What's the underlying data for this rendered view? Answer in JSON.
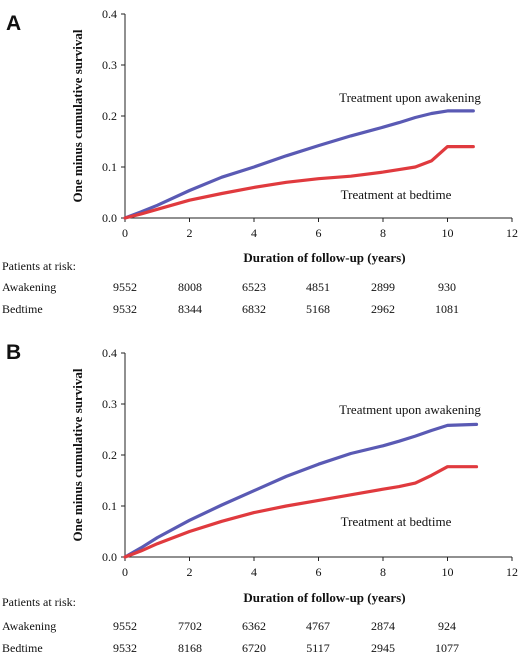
{
  "chart_data": [
    {
      "type": "line",
      "panel_label": "A",
      "xlabel": "Duration of follow-up (years)",
      "ylabel": "One minus cumulative survival",
      "xlim": [
        0,
        12
      ],
      "ylim": [
        0,
        0.4
      ],
      "xticks": [
        "0",
        "2",
        "4",
        "6",
        "8",
        "10",
        "12"
      ],
      "yticks": [
        "0.0",
        "0.1",
        "0.2",
        "0.3",
        "0.4"
      ],
      "annotations": [
        "Treatment upon awakening",
        "Treatment at bedtime"
      ],
      "series": [
        {
          "name": "Treatment upon awakening",
          "color": "#5a5ab4",
          "x": [
            0,
            0.5,
            1,
            2,
            3,
            4,
            5,
            6,
            7,
            8,
            8.5,
            9,
            9.5,
            10,
            10.8
          ],
          "y": [
            0,
            0.012,
            0.025,
            0.054,
            0.08,
            0.1,
            0.122,
            0.142,
            0.161,
            0.178,
            0.187,
            0.197,
            0.205,
            0.21,
            0.21
          ]
        },
        {
          "name": "Treatment at bedtime",
          "color": "#e03a3e",
          "x": [
            0,
            0.5,
            1,
            2,
            3,
            4,
            5,
            6,
            7,
            8,
            8.5,
            9,
            9.5,
            10,
            10.8
          ],
          "y": [
            0,
            0.008,
            0.017,
            0.035,
            0.048,
            0.06,
            0.07,
            0.077,
            0.082,
            0.09,
            0.095,
            0.1,
            0.112,
            0.14,
            0.14
          ]
        }
      ],
      "patients_at_risk": {
        "title": "Patients at risk:",
        "rows": [
          {
            "label": "Awakening",
            "values": [
              "9552",
              "8008",
              "6523",
              "4851",
              "2899",
              "930"
            ]
          },
          {
            "label": "Bedtime",
            "values": [
              "9532",
              "8344",
              "6832",
              "5168",
              "2962",
              "1081"
            ]
          }
        ]
      }
    },
    {
      "type": "line",
      "panel_label": "B",
      "xlabel": "Duration of follow-up (years)",
      "ylabel": "One minus cumulative survival",
      "xlim": [
        0,
        12
      ],
      "ylim": [
        0,
        0.4
      ],
      "xticks": [
        "0",
        "2",
        "4",
        "6",
        "8",
        "10",
        "12"
      ],
      "yticks": [
        "0.0",
        "0.1",
        "0.2",
        "0.3",
        "0.4"
      ],
      "annotations": [
        "Treatment upon awakening",
        "Treatment at bedtime"
      ],
      "series": [
        {
          "name": "Treatment upon awakening",
          "color": "#5a5ab4",
          "x": [
            0,
            0.5,
            1,
            2,
            3,
            4,
            5,
            6,
            7,
            8,
            8.5,
            9,
            9.5,
            10,
            10.9
          ],
          "y": [
            0,
            0.018,
            0.038,
            0.072,
            0.102,
            0.13,
            0.158,
            0.182,
            0.203,
            0.218,
            0.227,
            0.237,
            0.248,
            0.258,
            0.26
          ]
        },
        {
          "name": "Treatment at bedtime",
          "color": "#e03a3e",
          "x": [
            0,
            0.5,
            1,
            2,
            3,
            4,
            5,
            6,
            7,
            8,
            8.5,
            9,
            9.5,
            10,
            10.9
          ],
          "y": [
            0,
            0.012,
            0.026,
            0.05,
            0.07,
            0.087,
            0.1,
            0.111,
            0.122,
            0.133,
            0.138,
            0.145,
            0.16,
            0.177,
            0.177
          ]
        }
      ],
      "patients_at_risk": {
        "title": "Patients at risk:",
        "rows": [
          {
            "label": "Awakening",
            "values": [
              "9552",
              "7702",
              "6362",
              "4767",
              "2874",
              "924"
            ]
          },
          {
            "label": "Bedtime",
            "values": [
              "9532",
              "8168",
              "6720",
              "5117",
              "2945",
              "1077"
            ]
          }
        ]
      }
    }
  ]
}
